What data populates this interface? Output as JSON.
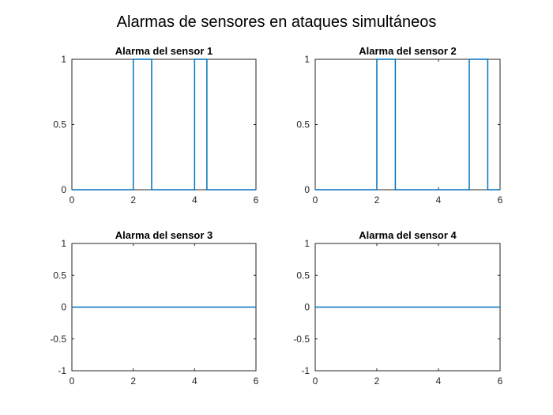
{
  "figure": {
    "title": "Alarmas de sensores en ataques simultáneos"
  },
  "chart_data": [
    {
      "type": "line",
      "title": "Alarma del sensor 1",
      "xlim": [
        0,
        6
      ],
      "ylim": [
        0,
        1
      ],
      "xticks": [
        0,
        2,
        4,
        6
      ],
      "yticks": [
        0,
        0.5,
        1
      ],
      "grid": false,
      "series": [
        {
          "color": "#0072BD",
          "x": [
            0,
            2,
            2,
            2.6,
            2.6,
            4,
            4,
            4.4,
            4.4,
            6
          ],
          "y": [
            0,
            0,
            1,
            1,
            0,
            0,
            1,
            1,
            0,
            0
          ]
        }
      ]
    },
    {
      "type": "line",
      "title": "Alarma del sensor 2",
      "xlim": [
        0,
        6
      ],
      "ylim": [
        0,
        1
      ],
      "xticks": [
        0,
        2,
        4,
        6
      ],
      "yticks": [
        0,
        0.5,
        1
      ],
      "grid": false,
      "series": [
        {
          "color": "#0072BD",
          "x": [
            0,
            2,
            2,
            2.6,
            2.6,
            5,
            5,
            5.6,
            5.6,
            6
          ],
          "y": [
            0,
            0,
            1,
            1,
            0,
            0,
            1,
            1,
            0,
            0
          ]
        }
      ]
    },
    {
      "type": "line",
      "title": "Alarma del sensor 3",
      "xlim": [
        0,
        6
      ],
      "ylim": [
        -1,
        1
      ],
      "xticks": [
        0,
        2,
        4,
        6
      ],
      "yticks": [
        -1,
        -0.5,
        0,
        0.5,
        1
      ],
      "grid": false,
      "series": [
        {
          "color": "#0072BD",
          "x": [
            0,
            6
          ],
          "y": [
            0,
            0
          ]
        }
      ]
    },
    {
      "type": "line",
      "title": "Alarma del sensor 4",
      "xlim": [
        0,
        6
      ],
      "ylim": [
        -1,
        1
      ],
      "xticks": [
        0,
        2,
        4,
        6
      ],
      "yticks": [
        -1,
        -0.5,
        0,
        0.5,
        1
      ],
      "grid": false,
      "series": [
        {
          "color": "#0072BD",
          "x": [
            0,
            6
          ],
          "y": [
            0,
            0
          ]
        }
      ]
    }
  ]
}
